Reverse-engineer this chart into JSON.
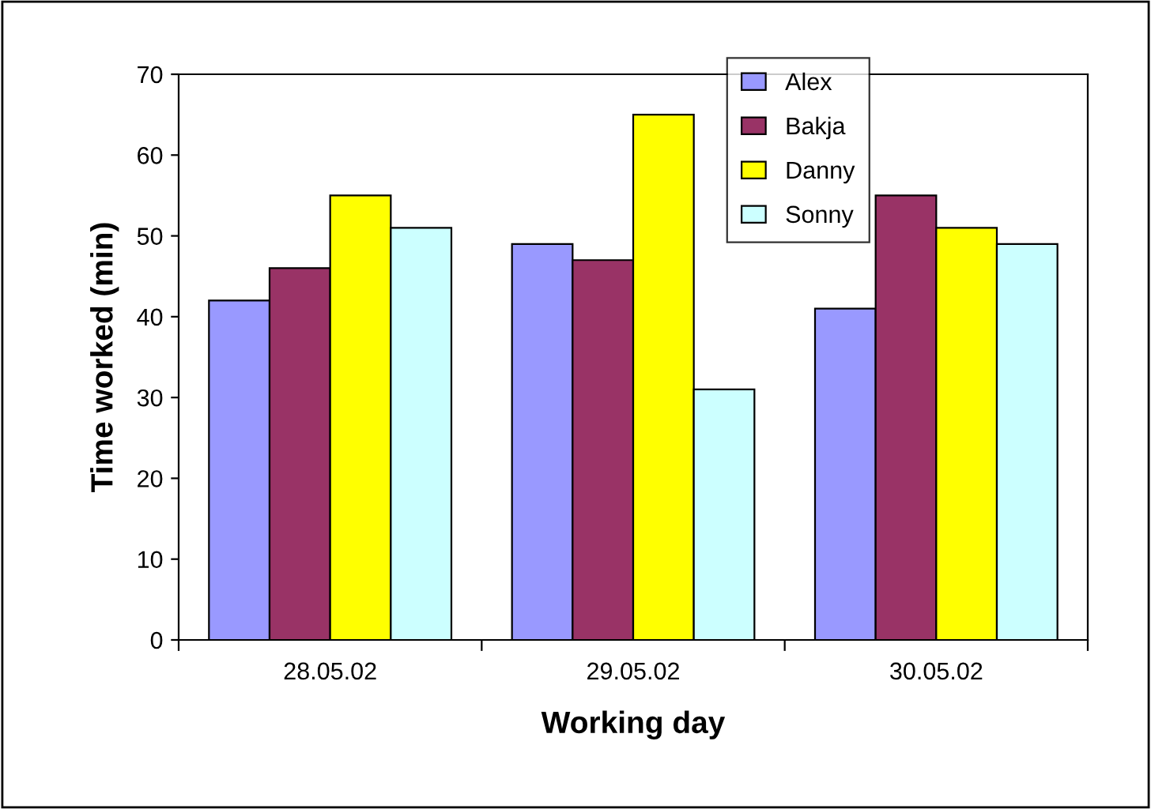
{
  "chart_data": {
    "type": "bar",
    "xlabel": "Working day",
    "ylabel": "Time worked (min)",
    "categories": [
      "28.05.02",
      "29.05.02",
      "30.05.02"
    ],
    "series": [
      {
        "name": "Alex",
        "color": "#9999ff",
        "values": [
          42,
          49,
          41
        ]
      },
      {
        "name": "Bakja",
        "color": "#993366",
        "values": [
          46,
          47,
          55
        ]
      },
      {
        "name": "Danny",
        "color": "#ffff00",
        "values": [
          55,
          65,
          51
        ]
      },
      {
        "name": "Sonny",
        "color": "#ccffff",
        "values": [
          51,
          31,
          49
        ]
      }
    ],
    "ylim": [
      0,
      70
    ],
    "yticks": [
      0,
      10,
      20,
      30,
      40,
      50,
      60,
      70
    ],
    "grid": false,
    "legend": "top right"
  }
}
